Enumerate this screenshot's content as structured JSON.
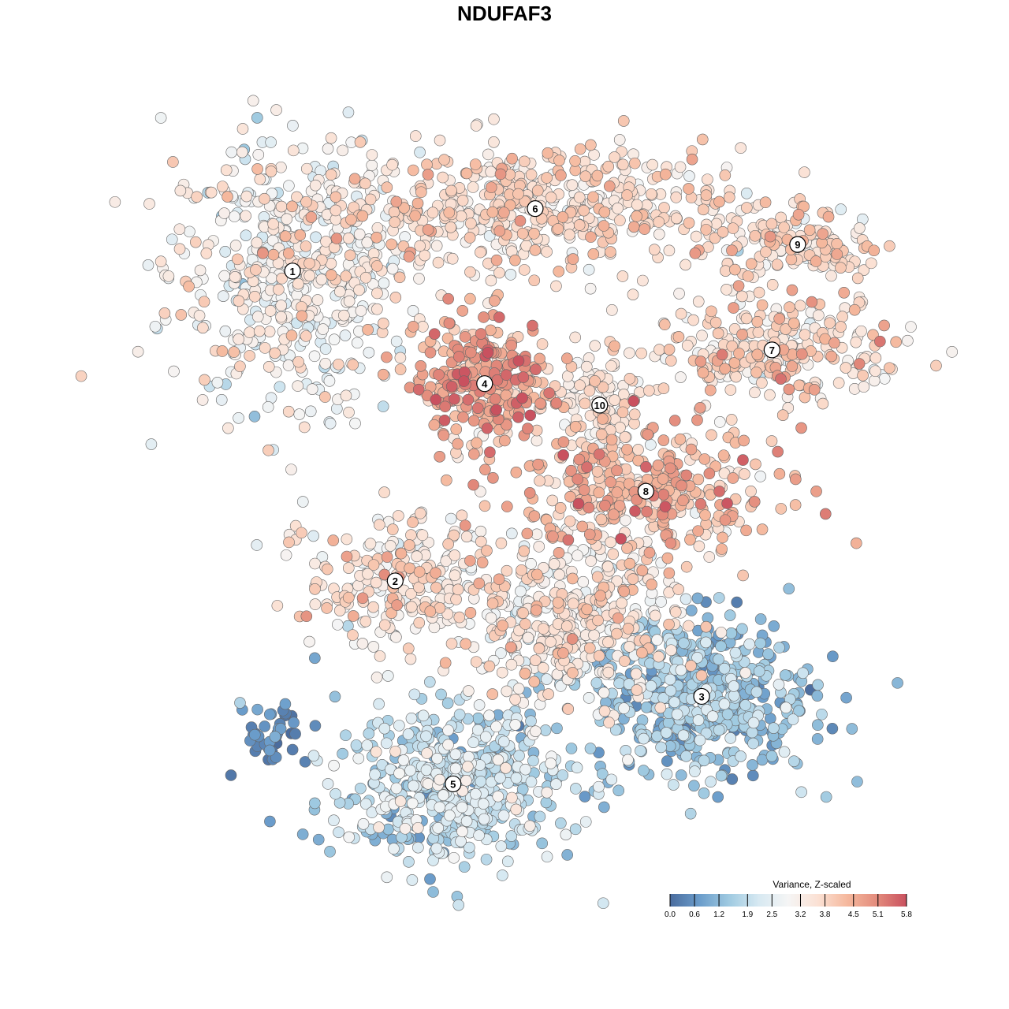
{
  "chart_data": {
    "type": "scatter",
    "title": "NDUFAF3",
    "xlabel": "",
    "ylabel": "",
    "xlim": [
      -50,
      50
    ],
    "ylim": [
      -50,
      50
    ],
    "grid": false,
    "legend": {
      "title": "Variance, Z-scaled",
      "placement": "bottom-right",
      "ticks": [
        "0.0",
        "0.6",
        "1.2",
        "1.9",
        "2.5",
        "3.2",
        "3.8",
        "4.5",
        "5.1",
        "5.8"
      ],
      "range": [
        0,
        5.8
      ],
      "colors": [
        "#4a6c9e",
        "#6b9dcb",
        "#9fcae1",
        "#d7e9f2",
        "#f5f5f5",
        "#fbe1d4",
        "#f5b89d",
        "#e38b7c",
        "#c9515f"
      ]
    },
    "clusters": [
      {
        "label": "1",
        "cx": -31.6,
        "cy": 32.0,
        "sx": 8.5,
        "sy": 9.5,
        "n": 520,
        "mean": 3.0,
        "sdv": 0.6
      },
      {
        "label": "6",
        "cx": 1.5,
        "cy": 40.7,
        "sx": 14,
        "sy": 4.2,
        "n": 520,
        "mean": 3.6,
        "sdv": 0.5
      },
      {
        "label": "9",
        "cx": 37.3,
        "cy": 35.7,
        "sx": 6,
        "sy": 2.6,
        "n": 140,
        "mean": 3.6,
        "sdv": 0.6
      },
      {
        "label": "7",
        "cx": 33.8,
        "cy": 21.0,
        "sx": 9,
        "sy": 3.6,
        "n": 260,
        "mean": 3.7,
        "sdv": 0.6
      },
      {
        "label": "4",
        "cx": -5.4,
        "cy": 16.3,
        "sx": 4.5,
        "sy": 4.8,
        "n": 300,
        "mean": 4.5,
        "sdv": 0.7
      },
      {
        "label": "10",
        "cx": 10.3,
        "cy": 13.3,
        "sx": 3,
        "sy": 4,
        "n": 110,
        "mean": 3.4,
        "sdv": 0.4
      },
      {
        "label": "8",
        "cx": 16.6,
        "cy": 1.3,
        "sx": 9,
        "sy": 4.2,
        "n": 330,
        "mean": 4.2,
        "sdv": 0.6
      },
      {
        "label": "2",
        "cx": -17.6,
        "cy": -11.2,
        "sx": 6,
        "sy": 4.8,
        "n": 230,
        "mean": 3.4,
        "sdv": 0.6
      },
      {
        "label": "",
        "cx": 5.9,
        "cy": -15.9,
        "sx": 8,
        "sy": 6,
        "n": 420,
        "mean": 3.3,
        "sdv": 0.6
      },
      {
        "label": "3",
        "cx": 24.2,
        "cy": -27.3,
        "sx": 7.5,
        "sy": 5.5,
        "n": 520,
        "mean": 1.3,
        "sdv": 0.5
      },
      {
        "label": "5",
        "cx": -9.7,
        "cy": -39.5,
        "sx": 8,
        "sy": 5.5,
        "n": 560,
        "mean": 1.9,
        "sdv": 0.6
      },
      {
        "label": "",
        "cx": -34.4,
        "cy": -32.4,
        "sx": 2.5,
        "sy": 2.2,
        "n": 40,
        "mean": 0.4,
        "sdv": 0.3
      }
    ]
  }
}
